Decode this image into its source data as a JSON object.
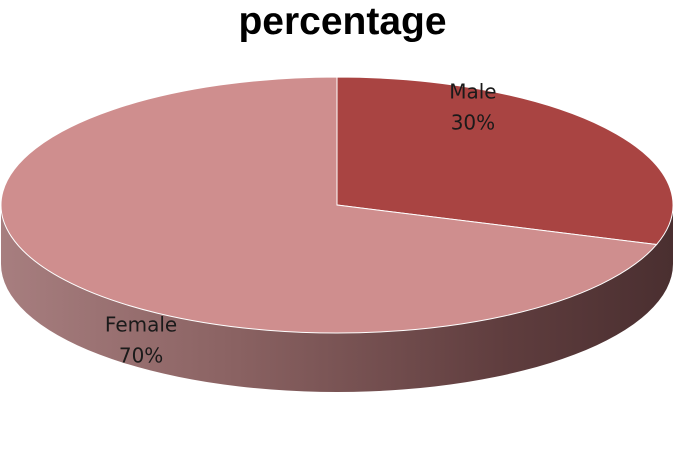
{
  "chart_data": {
    "type": "pie",
    "style": "3d",
    "title": "percentage",
    "categories": [
      "Male",
      "Female"
    ],
    "values": [
      30,
      70
    ],
    "value_labels": [
      "30%",
      "70%"
    ],
    "colors": {
      "Male": "#A94442",
      "Female": "#CF8E8E"
    },
    "legend": "none"
  }
}
